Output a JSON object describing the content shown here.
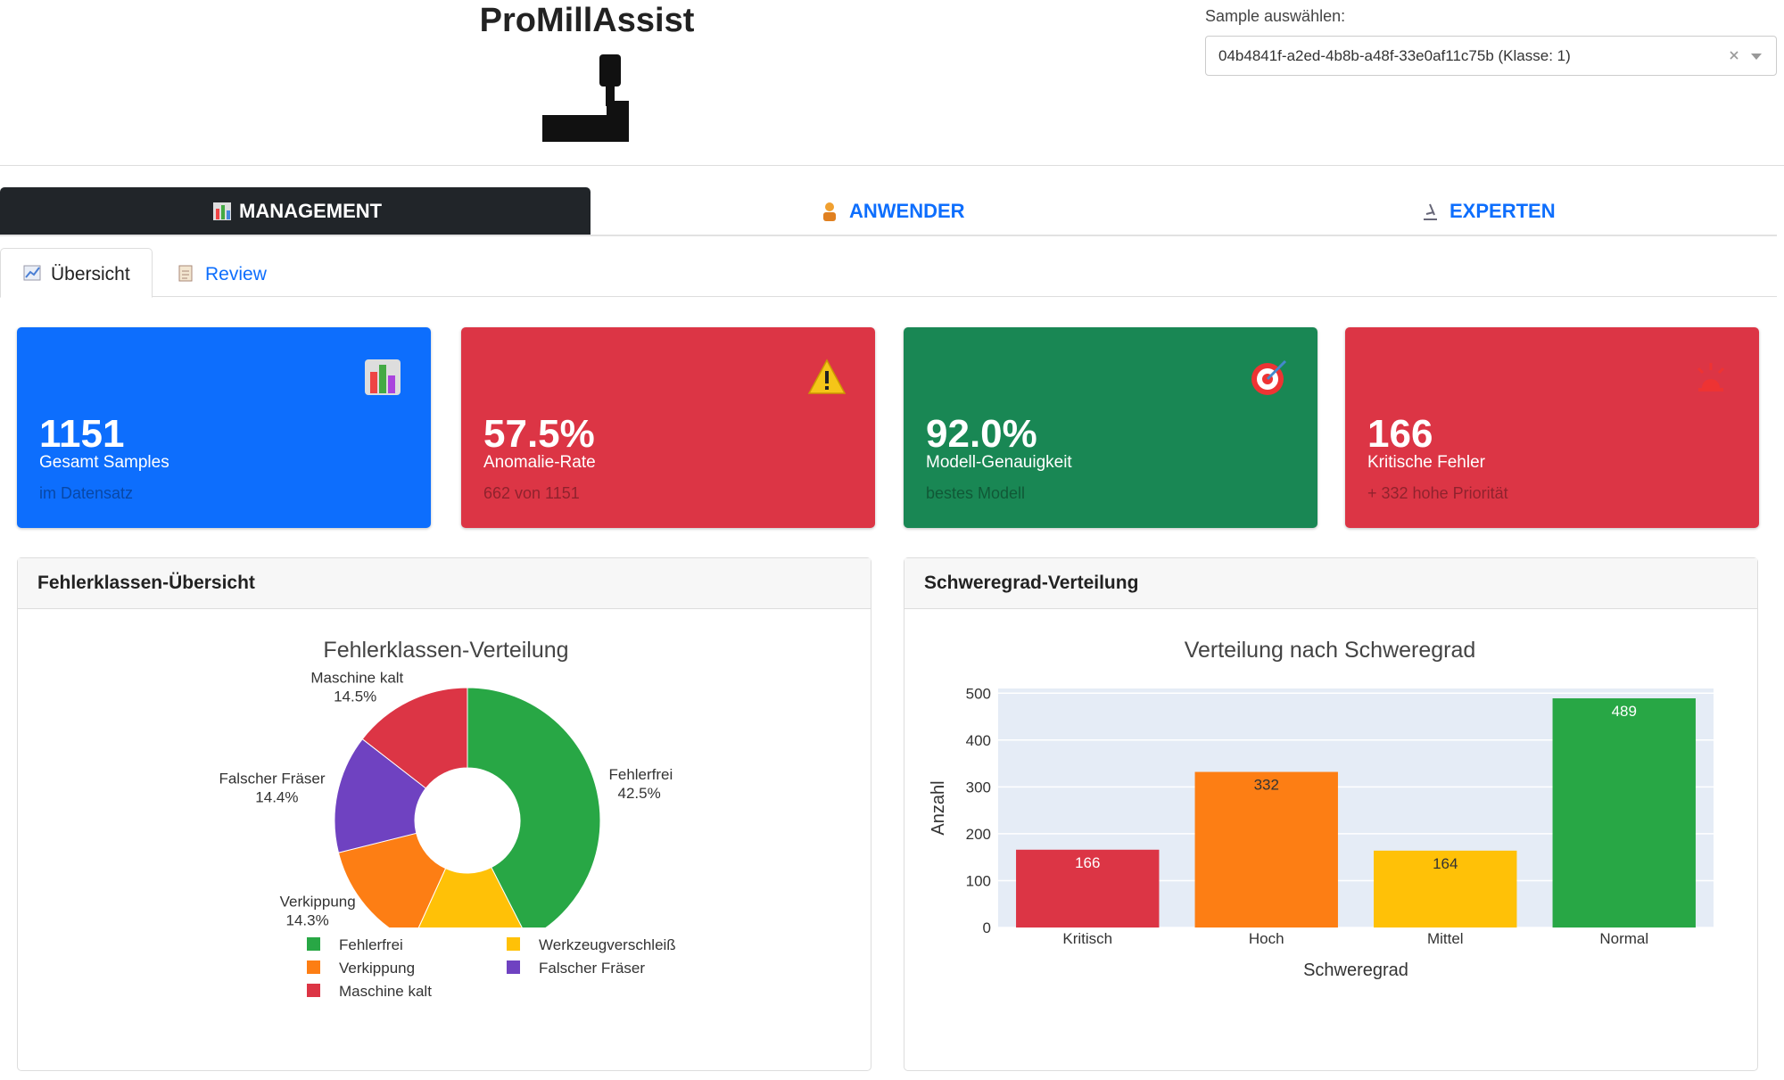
{
  "header": {
    "title": "ProMillAssist",
    "sample_label": "Sample auswählen:",
    "sample_value": "04b4841f-a2ed-4b8b-a48f-33e0af11c75b (Klasse: 1)"
  },
  "main_tabs": [
    "MANAGEMENT",
    "ANWENDER",
    "EXPERTEN"
  ],
  "sub_tabs": [
    "Übersicht",
    "Review"
  ],
  "kpis": [
    {
      "value": "1151",
      "label": "Gesamt Samples",
      "note": "im Datensatz",
      "color": "#0d6efd"
    },
    {
      "value": "57.5%",
      "label": "Anomalie-Rate",
      "note": "662 von 1151",
      "color": "#dc3545"
    },
    {
      "value": "92.0%",
      "label": "Modell-Genauigkeit",
      "note": "bestes Modell",
      "color": "#198754"
    },
    {
      "value": "166",
      "label": "Kritische Fehler",
      "note": "+ 332 hohe Priorität",
      "color": "#dc3545"
    }
  ],
  "panels": [
    "Fehlerklassen-Übersicht",
    "Schweregrad-Verteilung"
  ],
  "chart_data": [
    {
      "type": "pie",
      "title": "Fehlerklassen-Verteilung",
      "categories": [
        "Fehlerfrei",
        "Werkzeugverschleiß",
        "Verkippung",
        "Falscher Fräser",
        "Maschine kalt"
      ],
      "values": [
        42.5,
        14.3,
        14.3,
        14.4,
        14.5
      ],
      "value_labels": [
        "42.5%",
        null,
        "14.3%",
        "14.4%",
        "14.5%"
      ],
      "colors": [
        "#28a745",
        "#ffc107",
        "#fd7e14",
        "#6f42c1",
        "#dc3545"
      ],
      "hole": true,
      "legend": "bottom"
    },
    {
      "type": "bar",
      "title": "Verteilung nach Schweregrad",
      "x_label": "Schweregrad",
      "y_label": "Anzahl",
      "categories": [
        "Kritisch",
        "Hoch",
        "Mittel",
        "Normal"
      ],
      "values": [
        166,
        332,
        164,
        489
      ],
      "colors": [
        "#dc3545",
        "#fd7e14",
        "#ffc107",
        "#28a745"
      ],
      "ylim": [
        0,
        510
      ],
      "yticks": [
        0,
        100,
        200,
        300,
        400,
        500
      ],
      "grid": true
    }
  ]
}
